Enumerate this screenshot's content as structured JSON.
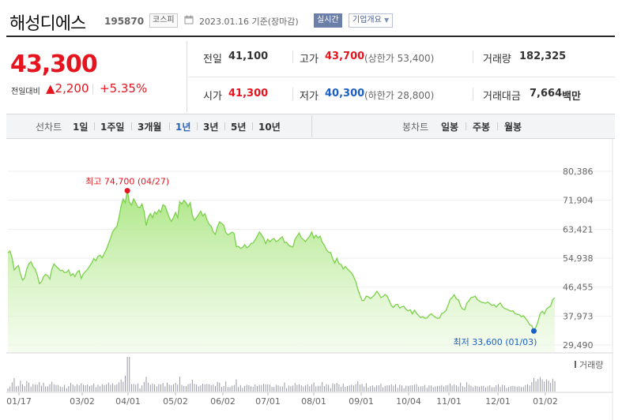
{
  "header": {
    "name": "해성디에스",
    "code": "195870",
    "market": "코스피",
    "date_basis": "2023.01.16 기준(장마감)",
    "realtime": "실시간",
    "overview": "기업개요"
  },
  "price": {
    "current": "43,300",
    "prev_label": "전일대비",
    "change_arrow": "▲",
    "change": "2,200",
    "pct": "+5.35%"
  },
  "quote": {
    "prev_close": {
      "label": "전일",
      "value": "41,100"
    },
    "high": {
      "label": "고가",
      "value": "43,700",
      "extra": "(상한가 53,400)"
    },
    "volume": {
      "label": "거래량",
      "value": "182,325"
    },
    "open": {
      "label": "시가",
      "value": "41,300"
    },
    "low": {
      "label": "저가",
      "value": "40,300",
      "extra": "(하한가 28,800)"
    },
    "amount": {
      "label": "거래대금",
      "value": "7,664",
      "unit": "백만"
    }
  },
  "periods": {
    "label": "선차트",
    "items": [
      "1일",
      "1주일",
      "3개월",
      "1년",
      "3년",
      "5년",
      "10년"
    ],
    "active_index": 3,
    "candle_label": "봉차트",
    "candle_items": [
      "일봉",
      "주봉",
      "월봉"
    ]
  },
  "colors": {
    "up": "#e5141e",
    "down": "#1a5fc7",
    "line": "#7ad14a",
    "active_period": "#2b63b8"
  },
  "chart_data": {
    "type": "area",
    "y_ticks": [
      "80,386",
      "71,904",
      "63,421",
      "54,938",
      "46,455",
      "37,973",
      "29,490"
    ],
    "ylim": [
      29490,
      80386
    ],
    "x_ticks": [
      "01/17",
      "03/02",
      "04/01",
      "05/02",
      "06/02",
      "07/01",
      "08/01",
      "09/01",
      "10/04",
      "11/01",
      "12/01",
      "01/02"
    ],
    "max_label": "최고 74,700 (04/27)",
    "min_label": "최저 33,600 (01/03)",
    "volume_label": "거래량",
    "series": [
      {
        "values": [
          56500,
          57000,
          55000,
          51500,
          52200,
          52800,
          50300,
          48500,
          49200,
          51800,
          53300,
          53900,
          52500,
          51700,
          50000,
          47500,
          48000,
          49500,
          50200,
          49800,
          48800,
          51800,
          53300,
          52500,
          52000,
          51300,
          51400,
          50700,
          50800,
          51500,
          49800,
          50400,
          49500,
          50800,
          51300,
          49000,
          50300,
          51000,
          51700,
          52600,
          53500,
          54800,
          54200,
          55500,
          55800,
          55000,
          56300,
          57500,
          59200,
          60800,
          62700,
          63500,
          64300,
          66800,
          70200,
          72300,
          71200,
          74700,
          71300,
          70500,
          72300,
          71200,
          69900,
          69800,
          70800,
          68600,
          64500,
          66900,
          68000,
          66800,
          68500,
          67900,
          69100,
          68400,
          70600,
          70200,
          68500,
          66800,
          65700,
          66900,
          68300,
          66800,
          71500,
          70800,
          71900,
          71200,
          70100,
          71200,
          67500,
          66000,
          66800,
          67700,
          68700,
          67300,
          68000,
          66200,
          64900,
          64300,
          62600,
          61900,
          64100,
          65600,
          65100,
          64600,
          62400,
          61800,
          62100,
          62600,
          62100,
          58300,
          58400,
          57800,
          58100,
          58900,
          58000,
          58400,
          59200,
          59400,
          60300,
          61400,
          62600,
          61800,
          60800,
          59200,
          60500,
          59700,
          60400,
          60700,
          59800,
          60100,
          60800,
          61200,
          59500,
          59600,
          58700,
          58400,
          58200,
          60400,
          61400,
          62300,
          60900,
          60400,
          59800,
          60600,
          61400,
          62600,
          60800,
          61700,
          60900,
          61400,
          59600,
          58700,
          57400,
          56700,
          56600,
          54700,
          53500,
          54900,
          53300,
          53100,
          51800,
          52500,
          51800,
          51200,
          50600,
          49500,
          48100,
          45800,
          44100,
          42500,
          42600,
          43800,
          43600,
          43100,
          43600,
          44200,
          45200,
          44500,
          43400,
          43700,
          44300,
          43800,
          42500,
          41000,
          40500,
          41300,
          41400,
          40300,
          40700,
          40800,
          39900,
          39500,
          39800,
          38600,
          39700,
          38800,
          38100,
          37500,
          37800,
          37300,
          37400,
          38200,
          38600,
          38100,
          37600,
          37300,
          37400,
          38700,
          39000,
          39500,
          41000,
          42800,
          43400,
          44200,
          43000,
          42700,
          41000,
          40000,
          39800,
          41800,
          42400,
          43400,
          43500,
          43800,
          42800,
          42400,
          42000,
          41900,
          41700,
          42100,
          41600,
          41100,
          41300,
          40600,
          41300,
          41800,
          40700,
          40200,
          40000,
          39700,
          39400,
          39500,
          38700,
          38500,
          38400,
          37800,
          38100,
          37300,
          36500,
          35400,
          35200,
          33600,
          34700,
          36400,
          38600,
          39400,
          38600,
          40000,
          40500,
          40900,
          42800,
          43300
        ]
      }
    ]
  }
}
